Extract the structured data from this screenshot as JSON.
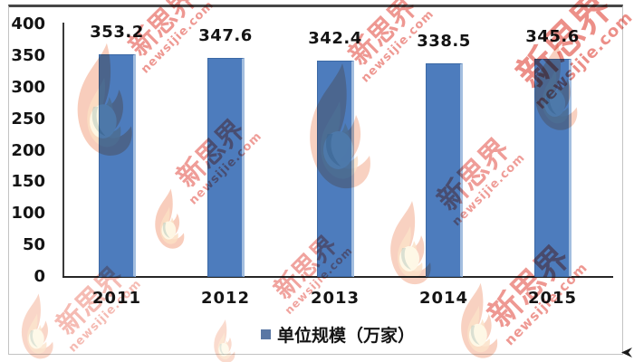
{
  "chart_data": {
    "type": "bar",
    "title": "",
    "categories": [
      "2011",
      "2012",
      "2013",
      "2014",
      "2015"
    ],
    "series": [
      {
        "name": "单位规模（万家）",
        "values": [
          353.2,
          347.6,
          342.4,
          338.5,
          345.6
        ]
      }
    ],
    "value_labels": [
      "353.2",
      "347.6",
      "342.4",
      "338.5",
      "345.6"
    ],
    "xlabel": "",
    "ylabel": "",
    "ylim": [
      0,
      400
    ],
    "yticks": [
      "400",
      "350",
      "300",
      "250",
      "200",
      "150",
      "100",
      "50",
      "0"
    ],
    "grid": false,
    "legend_position": "bottom",
    "bar_color": "#4d7cbd",
    "bar_edge_color": "#3c69a5",
    "bar_highlight_color": "#a3bedf",
    "axis_color": "#3a3a3a",
    "text_color": "#141414"
  },
  "legend": {
    "label": "单位规模（万家）",
    "marker_color": "#5a77a4"
  },
  "watermark": {
    "brand": "新思界",
    "site": "newsijie.com",
    "red": "#dd3226",
    "pink": "#ee8d80",
    "flame_outer": "#f0946f",
    "flame_mid": "#f8c492",
    "flame_inner": "#fdf3d2",
    "flame_accent": "#7d9b85"
  }
}
